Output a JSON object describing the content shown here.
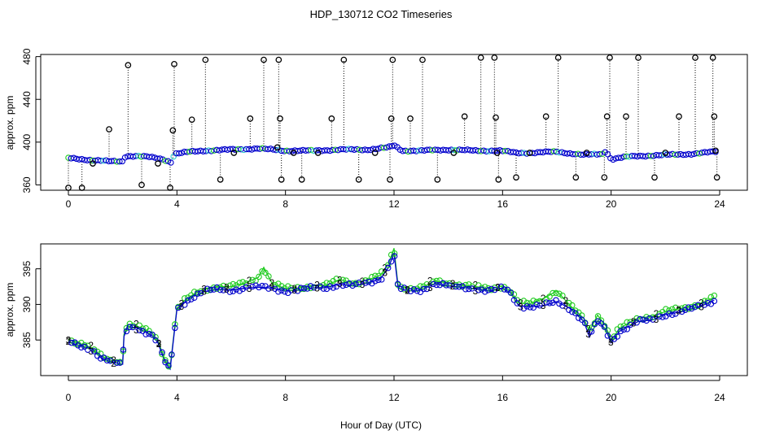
{
  "title": "HDP_130712  CO2 Timeseries",
  "colors": {
    "primary": "#0000cc",
    "secondary": "#22cc22",
    "tertiary": "#33cccc",
    "spike": "#000000"
  },
  "chart_data": [
    {
      "type": "scatter",
      "panel": "top",
      "ylabel": "approx. ppm",
      "xlim": [
        0,
        24
      ],
      "ylim": [
        355,
        482
      ],
      "x_ticks": [
        0,
        4,
        8,
        12,
        16,
        20,
        24
      ],
      "y_ticks": [
        360,
        400,
        440,
        480
      ],
      "baseline": [
        [
          0.0,
          385
        ],
        [
          0.5,
          384
        ],
        [
          1.0,
          383
        ],
        [
          1.5,
          382
        ],
        [
          2.0,
          382
        ],
        [
          2.1,
          387
        ],
        [
          2.5,
          387
        ],
        [
          3.0,
          386
        ],
        [
          3.5,
          384
        ],
        [
          3.8,
          381
        ],
        [
          3.9,
          389
        ],
        [
          4.5,
          391
        ],
        [
          5.0,
          392
        ],
        [
          6.0,
          393
        ],
        [
          7.0,
          394
        ],
        [
          8.0,
          392
        ],
        [
          9.0,
          392
        ],
        [
          10.0,
          393
        ],
        [
          11.0,
          393
        ],
        [
          11.8,
          395
        ],
        [
          12.0,
          397
        ],
        [
          12.3,
          392
        ],
        [
          13.0,
          392
        ],
        [
          14.0,
          393
        ],
        [
          15.0,
          392
        ],
        [
          15.9,
          392
        ],
        [
          16.5,
          390
        ],
        [
          17.0,
          390
        ],
        [
          18.0,
          391
        ],
        [
          19.0,
          388
        ],
        [
          19.7,
          389
        ],
        [
          19.8,
          392
        ],
        [
          20.0,
          384
        ],
        [
          20.5,
          386
        ],
        [
          21.0,
          387
        ],
        [
          22.0,
          388
        ],
        [
          23.0,
          389
        ],
        [
          23.8,
          391
        ]
      ],
      "spikes": [
        [
          0.0,
          348
        ],
        [
          0.5,
          357
        ],
        [
          0.9,
          380
        ],
        [
          1.5,
          412
        ],
        [
          2.2,
          472
        ],
        [
          2.7,
          360
        ],
        [
          3.3,
          380
        ],
        [
          3.75,
          355
        ],
        [
          3.85,
          411
        ],
        [
          3.9,
          473
        ],
        [
          4.55,
          421
        ],
        [
          5.05,
          477
        ],
        [
          5.6,
          365
        ],
        [
          6.1,
          390
        ],
        [
          6.7,
          422
        ],
        [
          7.2,
          477
        ],
        [
          7.7,
          395
        ],
        [
          7.75,
          477
        ],
        [
          7.8,
          422
        ],
        [
          7.85,
          365
        ],
        [
          8.3,
          390
        ],
        [
          8.6,
          365
        ],
        [
          9.2,
          390
        ],
        [
          9.7,
          422
        ],
        [
          10.15,
          477
        ],
        [
          10.7,
          365
        ],
        [
          11.3,
          390
        ],
        [
          11.85,
          365
        ],
        [
          11.9,
          422
        ],
        [
          11.95,
          477
        ],
        [
          12.6,
          422
        ],
        [
          13.05,
          477
        ],
        [
          13.6,
          365
        ],
        [
          14.2,
          390
        ],
        [
          14.6,
          424
        ],
        [
          15.2,
          479
        ],
        [
          15.7,
          479
        ],
        [
          15.75,
          423
        ],
        [
          15.8,
          390
        ],
        [
          15.85,
          365
        ],
        [
          16.5,
          367
        ],
        [
          17.0,
          390
        ],
        [
          17.6,
          424
        ],
        [
          18.05,
          479
        ],
        [
          18.7,
          367
        ],
        [
          19.1,
          390
        ],
        [
          19.75,
          367
        ],
        [
          19.85,
          424
        ],
        [
          19.95,
          479
        ],
        [
          20.55,
          424
        ],
        [
          21.0,
          479
        ],
        [
          21.6,
          367
        ],
        [
          22.0,
          390
        ],
        [
          22.5,
          424
        ],
        [
          23.1,
          479
        ],
        [
          23.75,
          479
        ],
        [
          23.8,
          424
        ],
        [
          23.85,
          392
        ],
        [
          23.9,
          367
        ]
      ]
    },
    {
      "type": "scatter",
      "panel": "bottom",
      "xlabel": "Hour of Day (UTC)",
      "ylabel": "approx. ppm",
      "xlim": [
        0,
        24
      ],
      "ylim": [
        380,
        398.5
      ],
      "x_ticks": [
        0,
        4,
        8,
        12,
        16,
        20,
        24
      ],
      "y_ticks": [
        385,
        390,
        395
      ],
      "marker_labels": [
        "3",
        "2"
      ],
      "series": [
        {
          "values": [
            [
              0.0,
              384.8
            ],
            [
              0.3,
              384.3
            ],
            [
              0.6,
              384.0
            ],
            [
              0.9,
              383.6
            ],
            [
              1.2,
              382.5
            ],
            [
              1.6,
              381.9
            ],
            [
              2.0,
              381.6
            ],
            [
              2.05,
              385.5
            ],
            [
              2.2,
              386.9
            ],
            [
              2.5,
              386.7
            ],
            [
              2.8,
              386.2
            ],
            [
              3.1,
              385.6
            ],
            [
              3.3,
              384.6
            ],
            [
              3.55,
              382.0
            ],
            [
              3.7,
              381.1
            ],
            [
              3.75,
              380.9
            ],
            [
              4.0,
              389.3
            ],
            [
              4.3,
              390.3
            ],
            [
              4.6,
              391.1
            ],
            [
              5.0,
              391.8
            ],
            [
              5.5,
              392.1
            ],
            [
              6.0,
              392.0
            ],
            [
              6.5,
              392.3
            ],
            [
              7.0,
              392.4
            ],
            [
              7.5,
              392.3
            ],
            [
              8.0,
              391.9
            ],
            [
              8.5,
              392.0
            ],
            [
              9.0,
              392.3
            ],
            [
              9.5,
              392.4
            ],
            [
              10.0,
              392.8
            ],
            [
              10.5,
              392.6
            ],
            [
              11.0,
              393.0
            ],
            [
              11.5,
              393.6
            ],
            [
              11.8,
              395.2
            ],
            [
              12.0,
              397.2
            ],
            [
              12.15,
              392.3
            ],
            [
              12.5,
              391.9
            ],
            [
              13.0,
              392.0
            ],
            [
              13.5,
              392.9
            ],
            [
              14.0,
              392.6
            ],
            [
              14.5,
              392.4
            ],
            [
              15.0,
              392.2
            ],
            [
              15.5,
              391.9
            ],
            [
              16.0,
              392.3
            ],
            [
              16.3,
              391.6
            ],
            [
              16.6,
              389.8
            ],
            [
              17.0,
              389.7
            ],
            [
              17.5,
              389.8
            ],
            [
              18.0,
              390.4
            ],
            [
              18.5,
              389.4
            ],
            [
              19.0,
              387.6
            ],
            [
              19.2,
              385.4
            ],
            [
              19.5,
              387.7
            ],
            [
              19.8,
              386.5
            ],
            [
              20.0,
              384.6
            ],
            [
              20.3,
              386.2
            ],
            [
              20.7,
              387.0
            ],
            [
              21.0,
              387.6
            ],
            [
              21.5,
              387.8
            ],
            [
              22.0,
              388.6
            ],
            [
              22.5,
              388.9
            ],
            [
              23.0,
              389.4
            ],
            [
              23.4,
              389.9
            ],
            [
              23.8,
              390.6
            ]
          ]
        },
        {
          "values": [
            [
              0.0,
              385.1
            ],
            [
              0.3,
              384.6
            ],
            [
              0.6,
              384.3
            ],
            [
              0.9,
              383.8
            ],
            [
              1.2,
              382.8
            ],
            [
              1.6,
              382.1
            ],
            [
              2.0,
              381.9
            ],
            [
              2.05,
              385.8
            ],
            [
              2.2,
              387.2
            ],
            [
              2.5,
              387.0
            ],
            [
              2.8,
              386.5
            ],
            [
              3.1,
              385.9
            ],
            [
              3.3,
              384.9
            ],
            [
              3.55,
              382.3
            ],
            [
              3.7,
              381.4
            ],
            [
              3.75,
              381.2
            ],
            [
              4.0,
              389.5
            ],
            [
              4.3,
              390.6
            ],
            [
              4.6,
              391.4
            ],
            [
              5.0,
              392.1
            ],
            [
              5.5,
              392.5
            ],
            [
              6.0,
              392.5
            ],
            [
              6.5,
              393.0
            ],
            [
              7.0,
              393.8
            ],
            [
              7.2,
              395.2
            ],
            [
              7.5,
              393.0
            ],
            [
              8.0,
              392.2
            ],
            [
              8.5,
              392.3
            ],
            [
              9.0,
              392.6
            ],
            [
              9.5,
              392.7
            ],
            [
              10.0,
              393.5
            ],
            [
              10.5,
              393.0
            ],
            [
              11.0,
              393.4
            ],
            [
              11.5,
              394.1
            ],
            [
              11.8,
              395.7
            ],
            [
              12.0,
              397.9
            ],
            [
              12.15,
              392.6
            ],
            [
              12.5,
              392.2
            ],
            [
              13.0,
              392.3
            ],
            [
              13.5,
              393.3
            ],
            [
              14.0,
              393.0
            ],
            [
              14.5,
              392.7
            ],
            [
              15.0,
              392.5
            ],
            [
              15.5,
              392.2
            ],
            [
              16.0,
              392.6
            ],
            [
              16.3,
              391.9
            ],
            [
              16.6,
              390.2
            ],
            [
              17.0,
              390.1
            ],
            [
              17.5,
              390.8
            ],
            [
              18.0,
              391.9
            ],
            [
              18.5,
              389.8
            ],
            [
              19.0,
              388.0
            ],
            [
              19.2,
              386.2
            ],
            [
              19.5,
              388.5
            ],
            [
              19.8,
              387.0
            ],
            [
              20.0,
              384.9
            ],
            [
              20.3,
              386.6
            ],
            [
              20.7,
              387.5
            ],
            [
              21.0,
              388.1
            ],
            [
              21.5,
              388.3
            ],
            [
              22.0,
              389.0
            ],
            [
              22.5,
              389.4
            ],
            [
              23.0,
              389.8
            ],
            [
              23.4,
              390.3
            ],
            [
              23.8,
              391.0
            ]
          ]
        }
      ]
    }
  ]
}
